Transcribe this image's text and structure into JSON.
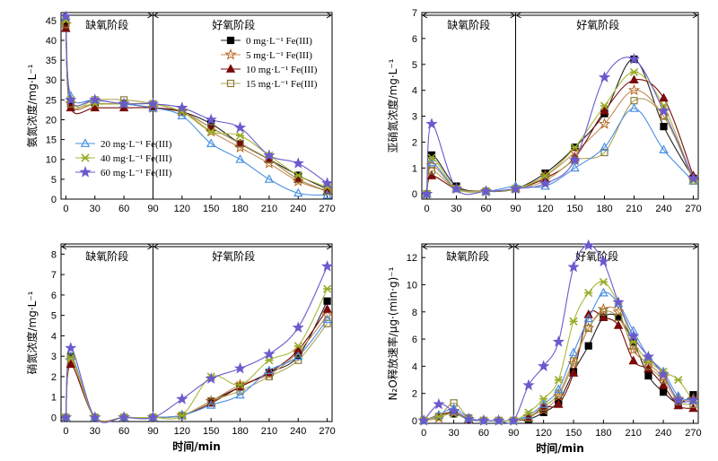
{
  "series_styles": [
    {
      "name": "0 mg·L⁻¹ Fe(III)",
      "marker": "square",
      "stroke": "#000000",
      "fill": "#000000",
      "line": "#222222"
    },
    {
      "name": "5 mg·L⁻¹ Fe(III)",
      "marker": "star",
      "stroke": "#b5651d",
      "fill": "none",
      "line": "#c68a5a"
    },
    {
      "name": "10 mg·L⁻¹ Fe(III)",
      "marker": "triangle",
      "stroke": "#7a0a0a",
      "fill": "#7a0a0a",
      "line": "#7a0a0a"
    },
    {
      "name": "15 mg·L⁻¹ Fe(III)",
      "marker": "square",
      "stroke": "#8b7d3a",
      "fill": "none",
      "line": "#b0a35a"
    },
    {
      "name": "20 mg·L⁻¹ Fe(III)",
      "marker": "triangle",
      "stroke": "#4a90e2",
      "fill": "none",
      "line": "#4a90e2"
    },
    {
      "name": "40 mg·L⁻¹ Fe(III)",
      "marker": "x",
      "stroke": "#9aab2a",
      "fill": "none",
      "line": "#a9b83a"
    },
    {
      "name": "60 mg·L⁻¹ Fe(III)",
      "marker": "star",
      "stroke": "#6a5acd",
      "fill": "#6a5acd",
      "line": "#6a5acd"
    }
  ],
  "legend_groups": {
    "top_right": [
      "0 mg·L⁻¹ Fe(III)",
      "5 mg·L⁻¹ Fe(III)",
      "10 mg·L⁻¹ Fe(III)",
      "15 mg·L⁻¹ Fe(III)"
    ],
    "bottom_left": [
      "20 mg·L⁻¹ Fe(III)",
      "40 mg·L⁻¹ Fe(III)",
      "60 mg·L⁻¹ Fe(III)"
    ]
  },
  "phase_labels": {
    "anoxic": "缺氧阶段",
    "aerobic": "好氧阶段"
  },
  "xlabel": "时间/min",
  "chart_data": [
    {
      "id": "ammonia",
      "type": "line",
      "ylabel": "氨氮浓度/mg·L⁻¹",
      "xlabel": "",
      "xlim": [
        -5,
        275
      ],
      "ylim": [
        0,
        47
      ],
      "xticks": [
        0,
        30,
        60,
        90,
        120,
        150,
        180,
        210,
        240,
        270
      ],
      "yticks": [
        0,
        5,
        10,
        15,
        20,
        25,
        30,
        35,
        40,
        45
      ],
      "phase_boundary": 90,
      "legend": "top_right+bottom_left",
      "x": [
        0,
        5,
        30,
        60,
        90,
        120,
        150,
        180,
        210,
        240,
        270
      ],
      "series": [
        {
          "name": "0 mg·L⁻¹ Fe(III)",
          "values": [
            44,
            24,
            24,
            24,
            23,
            22,
            19,
            14,
            10,
            6,
            2.5
          ]
        },
        {
          "name": "5 mg·L⁻¹ Fe(III)",
          "values": [
            44,
            24,
            24,
            24,
            23,
            22,
            17,
            13,
            9,
            4.5,
            2
          ]
        },
        {
          "name": "10 mg·L⁻¹ Fe(III)",
          "values": [
            43,
            23,
            23,
            23,
            23,
            22,
            18,
            14,
            10,
            5,
            2
          ]
        },
        {
          "name": "15 mg·L⁻¹ Fe(III)",
          "values": [
            44,
            24,
            25,
            25,
            24,
            22,
            18,
            14,
            10,
            5,
            2
          ]
        },
        {
          "name": "20 mg·L⁻¹ Fe(III)",
          "values": [
            46,
            26,
            25,
            24,
            23,
            21,
            14,
            10,
            5,
            1.5,
            1
          ]
        },
        {
          "name": "40 mg·L⁻¹ Fe(III)",
          "values": [
            45,
            25,
            24,
            24,
            24,
            22,
            17,
            16,
            11,
            6,
            3
          ]
        },
        {
          "name": "60 mg·L⁻¹ Fe(III)",
          "values": [
            46,
            25,
            25,
            24,
            24,
            23,
            20,
            18,
            11,
            9,
            4
          ]
        }
      ]
    },
    {
      "id": "nitrite",
      "type": "line",
      "ylabel": "亚硝氮浓度/mg·L⁻¹",
      "xlabel": "",
      "xlim": [
        -5,
        275
      ],
      "ylim": [
        -0.2,
        7
      ],
      "xticks": [
        0,
        30,
        60,
        90,
        120,
        150,
        180,
        210,
        240,
        270
      ],
      "yticks": [
        0,
        1,
        2,
        3,
        4,
        5,
        6,
        7
      ],
      "phase_boundary": 90,
      "legend": "none",
      "x": [
        0,
        5,
        30,
        60,
        90,
        120,
        150,
        180,
        210,
        240,
        270
      ],
      "series": [
        {
          "name": "0 mg·L⁻¹ Fe(III)",
          "values": [
            0,
            1.5,
            0.3,
            0.1,
            0.2,
            0.8,
            1.8,
            3.1,
            5.2,
            2.6,
            0.6
          ]
        },
        {
          "name": "5 mg·L⁻¹ Fe(III)",
          "values": [
            0,
            1.1,
            0.2,
            0.1,
            0.2,
            0.7,
            1.6,
            2.7,
            4.0,
            3.0,
            0.6
          ]
        },
        {
          "name": "10 mg·L⁻¹ Fe(III)",
          "values": [
            0,
            0.7,
            0.2,
            0.1,
            0.2,
            0.6,
            1.4,
            3.2,
            4.4,
            3.7,
            0.7
          ]
        },
        {
          "name": "15 mg·L⁻¹ Fe(III)",
          "values": [
            0,
            0.9,
            0.2,
            0.1,
            0.2,
            0.5,
            1.3,
            1.6,
            3.6,
            3.0,
            0.5
          ]
        },
        {
          "name": "20 mg·L⁻¹ Fe(III)",
          "values": [
            0,
            1.2,
            0.2,
            0.1,
            0.3,
            0.3,
            1.0,
            1.8,
            3.3,
            1.7,
            0.5
          ]
        },
        {
          "name": "40 mg·L⁻¹ Fe(III)",
          "values": [
            0,
            1.4,
            0.2,
            0.1,
            0.2,
            0.7,
            1.8,
            3.4,
            4.7,
            3.4,
            0.5
          ]
        },
        {
          "name": "60 mg·L⁻¹ Fe(III)",
          "values": [
            0,
            2.7,
            0.2,
            0.1,
            0.2,
            0.4,
            1.3,
            4.5,
            5.2,
            3.2,
            0.6
          ]
        }
      ]
    },
    {
      "id": "nitrate",
      "type": "line",
      "ylabel": "硝氮浓度/mg·L⁻¹",
      "xlabel": "时间/min",
      "xlim": [
        -5,
        275
      ],
      "ylim": [
        -0.2,
        8.5
      ],
      "xticks": [
        0,
        30,
        60,
        90,
        120,
        150,
        180,
        210,
        240,
        270
      ],
      "yticks": [
        0,
        1,
        2,
        3,
        4,
        5,
        6,
        7,
        8
      ],
      "phase_boundary": 90,
      "legend": "none",
      "x": [
        0,
        5,
        30,
        60,
        90,
        120,
        150,
        180,
        210,
        240,
        270
      ],
      "series": [
        {
          "name": "0 mg·L⁻¹ Fe(III)",
          "values": [
            0,
            3.0,
            0,
            0,
            0,
            0.1,
            0.8,
            1.5,
            2.2,
            3.0,
            5.7
          ]
        },
        {
          "name": "5 mg·L⁻¹ Fe(III)",
          "values": [
            0,
            2.8,
            0,
            0,
            0,
            0.1,
            0.8,
            1.6,
            2.1,
            3.2,
            5.0
          ]
        },
        {
          "name": "10 mg·L⁻¹ Fe(III)",
          "values": [
            0,
            2.6,
            0,
            0,
            0,
            0.1,
            0.7,
            1.5,
            2.2,
            3.3,
            5.3
          ]
        },
        {
          "name": "15 mg·L⁻¹ Fe(III)",
          "values": [
            0,
            3.0,
            0,
            0,
            0,
            0.1,
            0.8,
            1.3,
            2.0,
            2.8,
            4.6
          ]
        },
        {
          "name": "20 mg·L⁻¹ Fe(III)",
          "values": [
            0,
            3.0,
            0,
            0,
            0,
            0.1,
            0.6,
            1.1,
            2.3,
            3.0,
            4.8
          ]
        },
        {
          "name": "40 mg·L⁻¹ Fe(III)",
          "values": [
            0,
            2.9,
            0,
            0,
            0,
            0.1,
            2.0,
            1.6,
            2.8,
            3.5,
            6.3
          ]
        },
        {
          "name": "60 mg·L⁻¹ Fe(III)",
          "values": [
            0,
            3.4,
            0,
            0,
            0,
            0.9,
            1.9,
            2.4,
            3.1,
            4.4,
            7.4
          ]
        }
      ]
    },
    {
      "id": "n2o",
      "type": "line",
      "ylabel": "N₂O释放速率/μg·(min·g)⁻¹",
      "xlabel": "时间/min",
      "xlim": [
        -2,
        275
      ],
      "ylim": [
        -0.2,
        13
      ],
      "xticks": [
        0,
        30,
        60,
        90,
        120,
        150,
        180,
        210,
        240,
        270
      ],
      "yticks": [
        0,
        2,
        4,
        6,
        8,
        10,
        12
      ],
      "phase_boundary": 90,
      "legend": "none",
      "x": [
        0,
        15,
        30,
        45,
        60,
        75,
        90,
        105,
        120,
        135,
        150,
        165,
        180,
        195,
        210,
        225,
        240,
        255,
        270
      ],
      "series": [
        {
          "name": "0 mg·L⁻¹ Fe(III)",
          "values": [
            0,
            0.3,
            0.5,
            0.1,
            0,
            0,
            0,
            0.1,
            0.6,
            1.4,
            3.6,
            5.5,
            7.6,
            7.6,
            5.8,
            3.3,
            2.1,
            1.3,
            1.9
          ]
        },
        {
          "name": "5 mg·L⁻¹ Fe(III)",
          "values": [
            0,
            0.2,
            0.7,
            0.1,
            0,
            0,
            0,
            0.3,
            0.8,
            1.8,
            4.2,
            6.8,
            8.2,
            8.0,
            5.2,
            4.2,
            3.2,
            1.6,
            1.6
          ]
        },
        {
          "name": "10 mg·L⁻¹ Fe(III)",
          "values": [
            0,
            0.4,
            0.6,
            0.1,
            0,
            0,
            0,
            0.2,
            1.0,
            1.2,
            3.5,
            7.8,
            7.6,
            7.0,
            4.4,
            3.8,
            2.6,
            1.1,
            0.9
          ]
        },
        {
          "name": "15 mg·L⁻¹ Fe(III)",
          "values": [
            0,
            0.3,
            1.3,
            0.2,
            0,
            0,
            0,
            0.2,
            1.0,
            2.0,
            4.4,
            6.8,
            8.0,
            7.6,
            5.5,
            4.0,
            3.0,
            1.4,
            1.2
          ]
        },
        {
          "name": "20 mg·L⁻¹ Fe(III)",
          "values": [
            0,
            0.4,
            0.9,
            0.2,
            0,
            0,
            0,
            0.4,
            1.2,
            2.3,
            5.0,
            7.5,
            9.4,
            8.6,
            6.6,
            4.7,
            3.6,
            1.8,
            1.5
          ]
        },
        {
          "name": "40 mg·L⁻¹ Fe(III)",
          "values": [
            0,
            0.3,
            0.5,
            0.1,
            0,
            0,
            0,
            0.6,
            1.6,
            3.0,
            7.3,
            9.4,
            10.2,
            8.6,
            5.8,
            4.4,
            3.6,
            3.0,
            1.4
          ]
        },
        {
          "name": "60 mg·L⁻¹ Fe(III)",
          "values": [
            0,
            1.2,
            0.7,
            0.1,
            0,
            0,
            0,
            2.6,
            4.0,
            5.8,
            11.3,
            12.9,
            11.7,
            8.7,
            6.2,
            4.7,
            3.4,
            1.5,
            1.5
          ]
        }
      ]
    }
  ]
}
